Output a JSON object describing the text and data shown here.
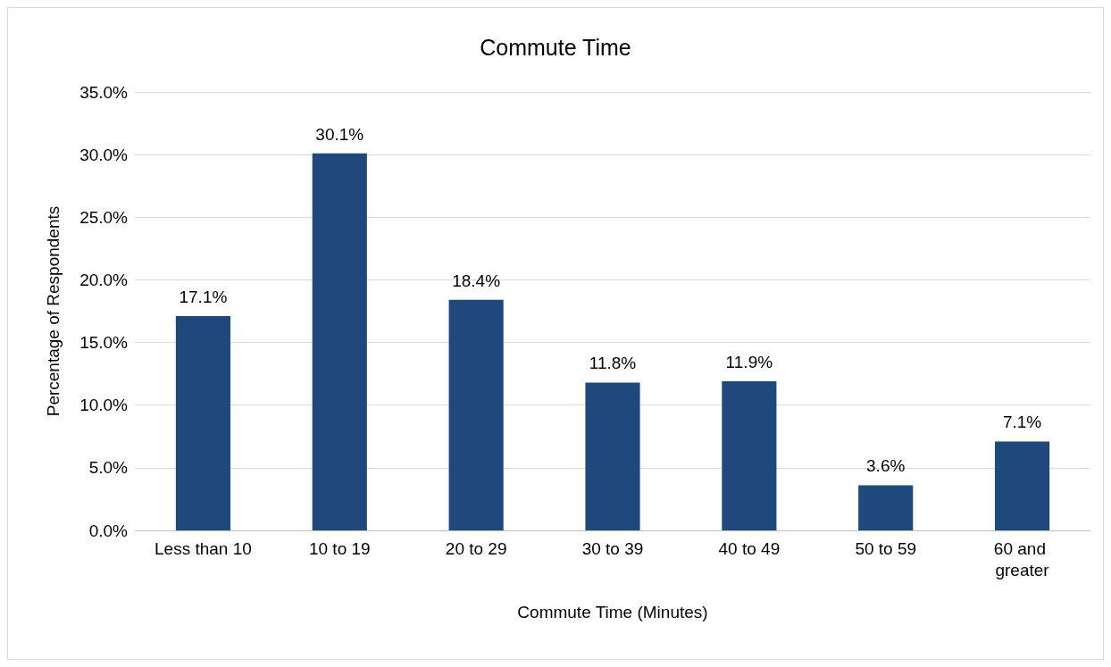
{
  "chart_data": {
    "type": "bar",
    "title": "Commute Time",
    "xlabel": "Commute Time (Minutes)",
    "ylabel": "Percentage of Respondents",
    "categories": [
      "Less than 10",
      "10 to 19",
      "20 to 29",
      "30 to 39",
      "40 to 49",
      "50 to 59",
      "60 and greater"
    ],
    "values": [
      17.1,
      30.1,
      18.4,
      11.8,
      11.9,
      3.6,
      7.1
    ],
    "value_labels": [
      "17.1%",
      "30.1%",
      "18.4%",
      "11.8%",
      "11.9%",
      "3.6%",
      "7.1%"
    ],
    "color": "#1f497d",
    "ylim": [
      0,
      35
    ],
    "yticks": [
      {
        "value": 0,
        "label": "0.0%"
      },
      {
        "value": 5,
        "label": "5.0%"
      },
      {
        "value": 10,
        "label": "10.0%"
      },
      {
        "value": 15,
        "label": "15.0%"
      },
      {
        "value": 20,
        "label": "20.0%"
      },
      {
        "value": 25,
        "label": "25.0%"
      },
      {
        "value": 30,
        "label": "30.0%"
      },
      {
        "value": 35,
        "label": "35.0%"
      }
    ],
    "grid": "y"
  }
}
